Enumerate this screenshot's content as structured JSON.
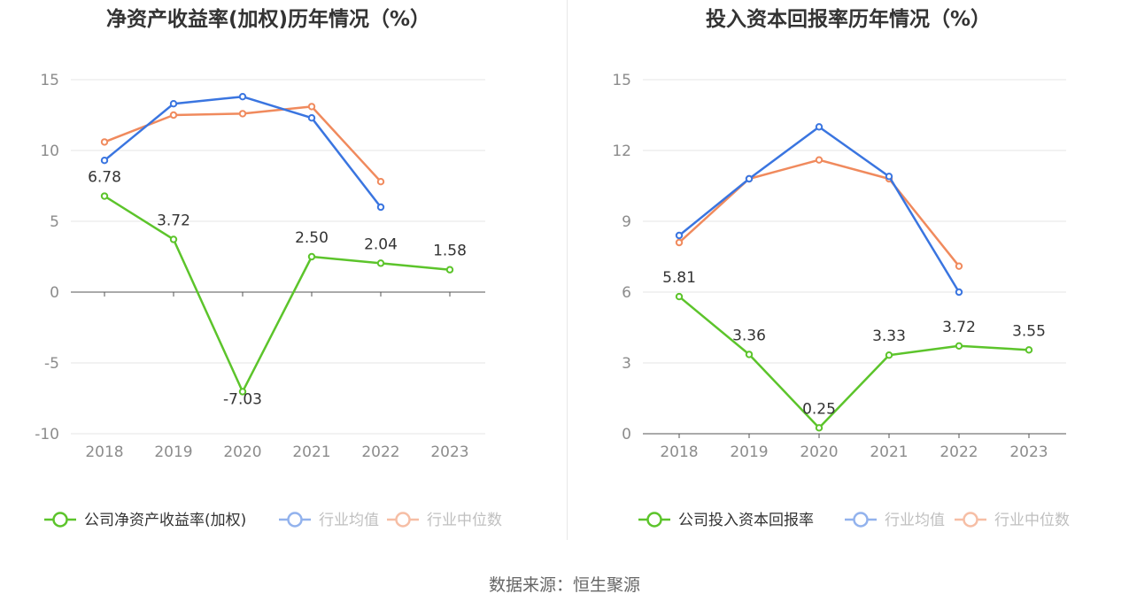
{
  "source": "数据来源：恒生聚源",
  "colors": {
    "company": "#5cc42b",
    "avg": "#3a75e0",
    "median": "#f08a5d",
    "grid": "#e6e6e6",
    "axis": "#555555"
  },
  "chart_data": [
    {
      "type": "line",
      "title": "净资产收益率(加权)历年情况（%）",
      "categories": [
        "2018",
        "2019",
        "2020",
        "2021",
        "2022",
        "2023"
      ],
      "ylim": [
        -10,
        15
      ],
      "yticks": [
        -10,
        -5,
        0,
        5,
        10,
        15
      ],
      "ytick_labels": [
        "-10",
        "-5",
        "0",
        "5",
        "10",
        "15"
      ],
      "grid": true,
      "legend_position": "bottom",
      "series": [
        {
          "name": "公司净资产收益率(加权)",
          "key": "company",
          "values": [
            6.78,
            3.72,
            -7.03,
            2.5,
            2.04,
            1.58
          ],
          "labels": [
            "6.78",
            "3.72",
            "-7.03",
            "2.50",
            "2.04",
            "1.58"
          ]
        },
        {
          "name": "行业均值",
          "key": "avg",
          "values": [
            9.3,
            13.3,
            13.8,
            12.3,
            6.0,
            null
          ]
        },
        {
          "name": "行业中位数",
          "key": "median",
          "values": [
            10.6,
            12.5,
            12.6,
            13.1,
            7.8,
            null
          ]
        }
      ]
    },
    {
      "type": "line",
      "title": "投入资本回报率历年情况（%）",
      "categories": [
        "2018",
        "2019",
        "2020",
        "2021",
        "2022",
        "2023"
      ],
      "ylim": [
        0,
        15
      ],
      "yticks": [
        0,
        3,
        6,
        9,
        12,
        15
      ],
      "ytick_labels": [
        "0",
        "3",
        "6",
        "9",
        "12",
        "15"
      ],
      "grid": true,
      "legend_position": "bottom",
      "series": [
        {
          "name": "公司投入资本回报率",
          "key": "company",
          "values": [
            5.81,
            3.36,
            0.25,
            3.33,
            3.72,
            3.55
          ],
          "labels": [
            "5.81",
            "3.36",
            "0.25",
            "3.33",
            "3.72",
            "3.55"
          ]
        },
        {
          "name": "行业均值",
          "key": "avg",
          "values": [
            8.4,
            10.8,
            13.0,
            10.9,
            6.0,
            null
          ]
        },
        {
          "name": "行业中位数",
          "key": "median",
          "values": [
            8.1,
            10.8,
            11.6,
            10.8,
            7.1,
            null
          ]
        }
      ]
    }
  ]
}
